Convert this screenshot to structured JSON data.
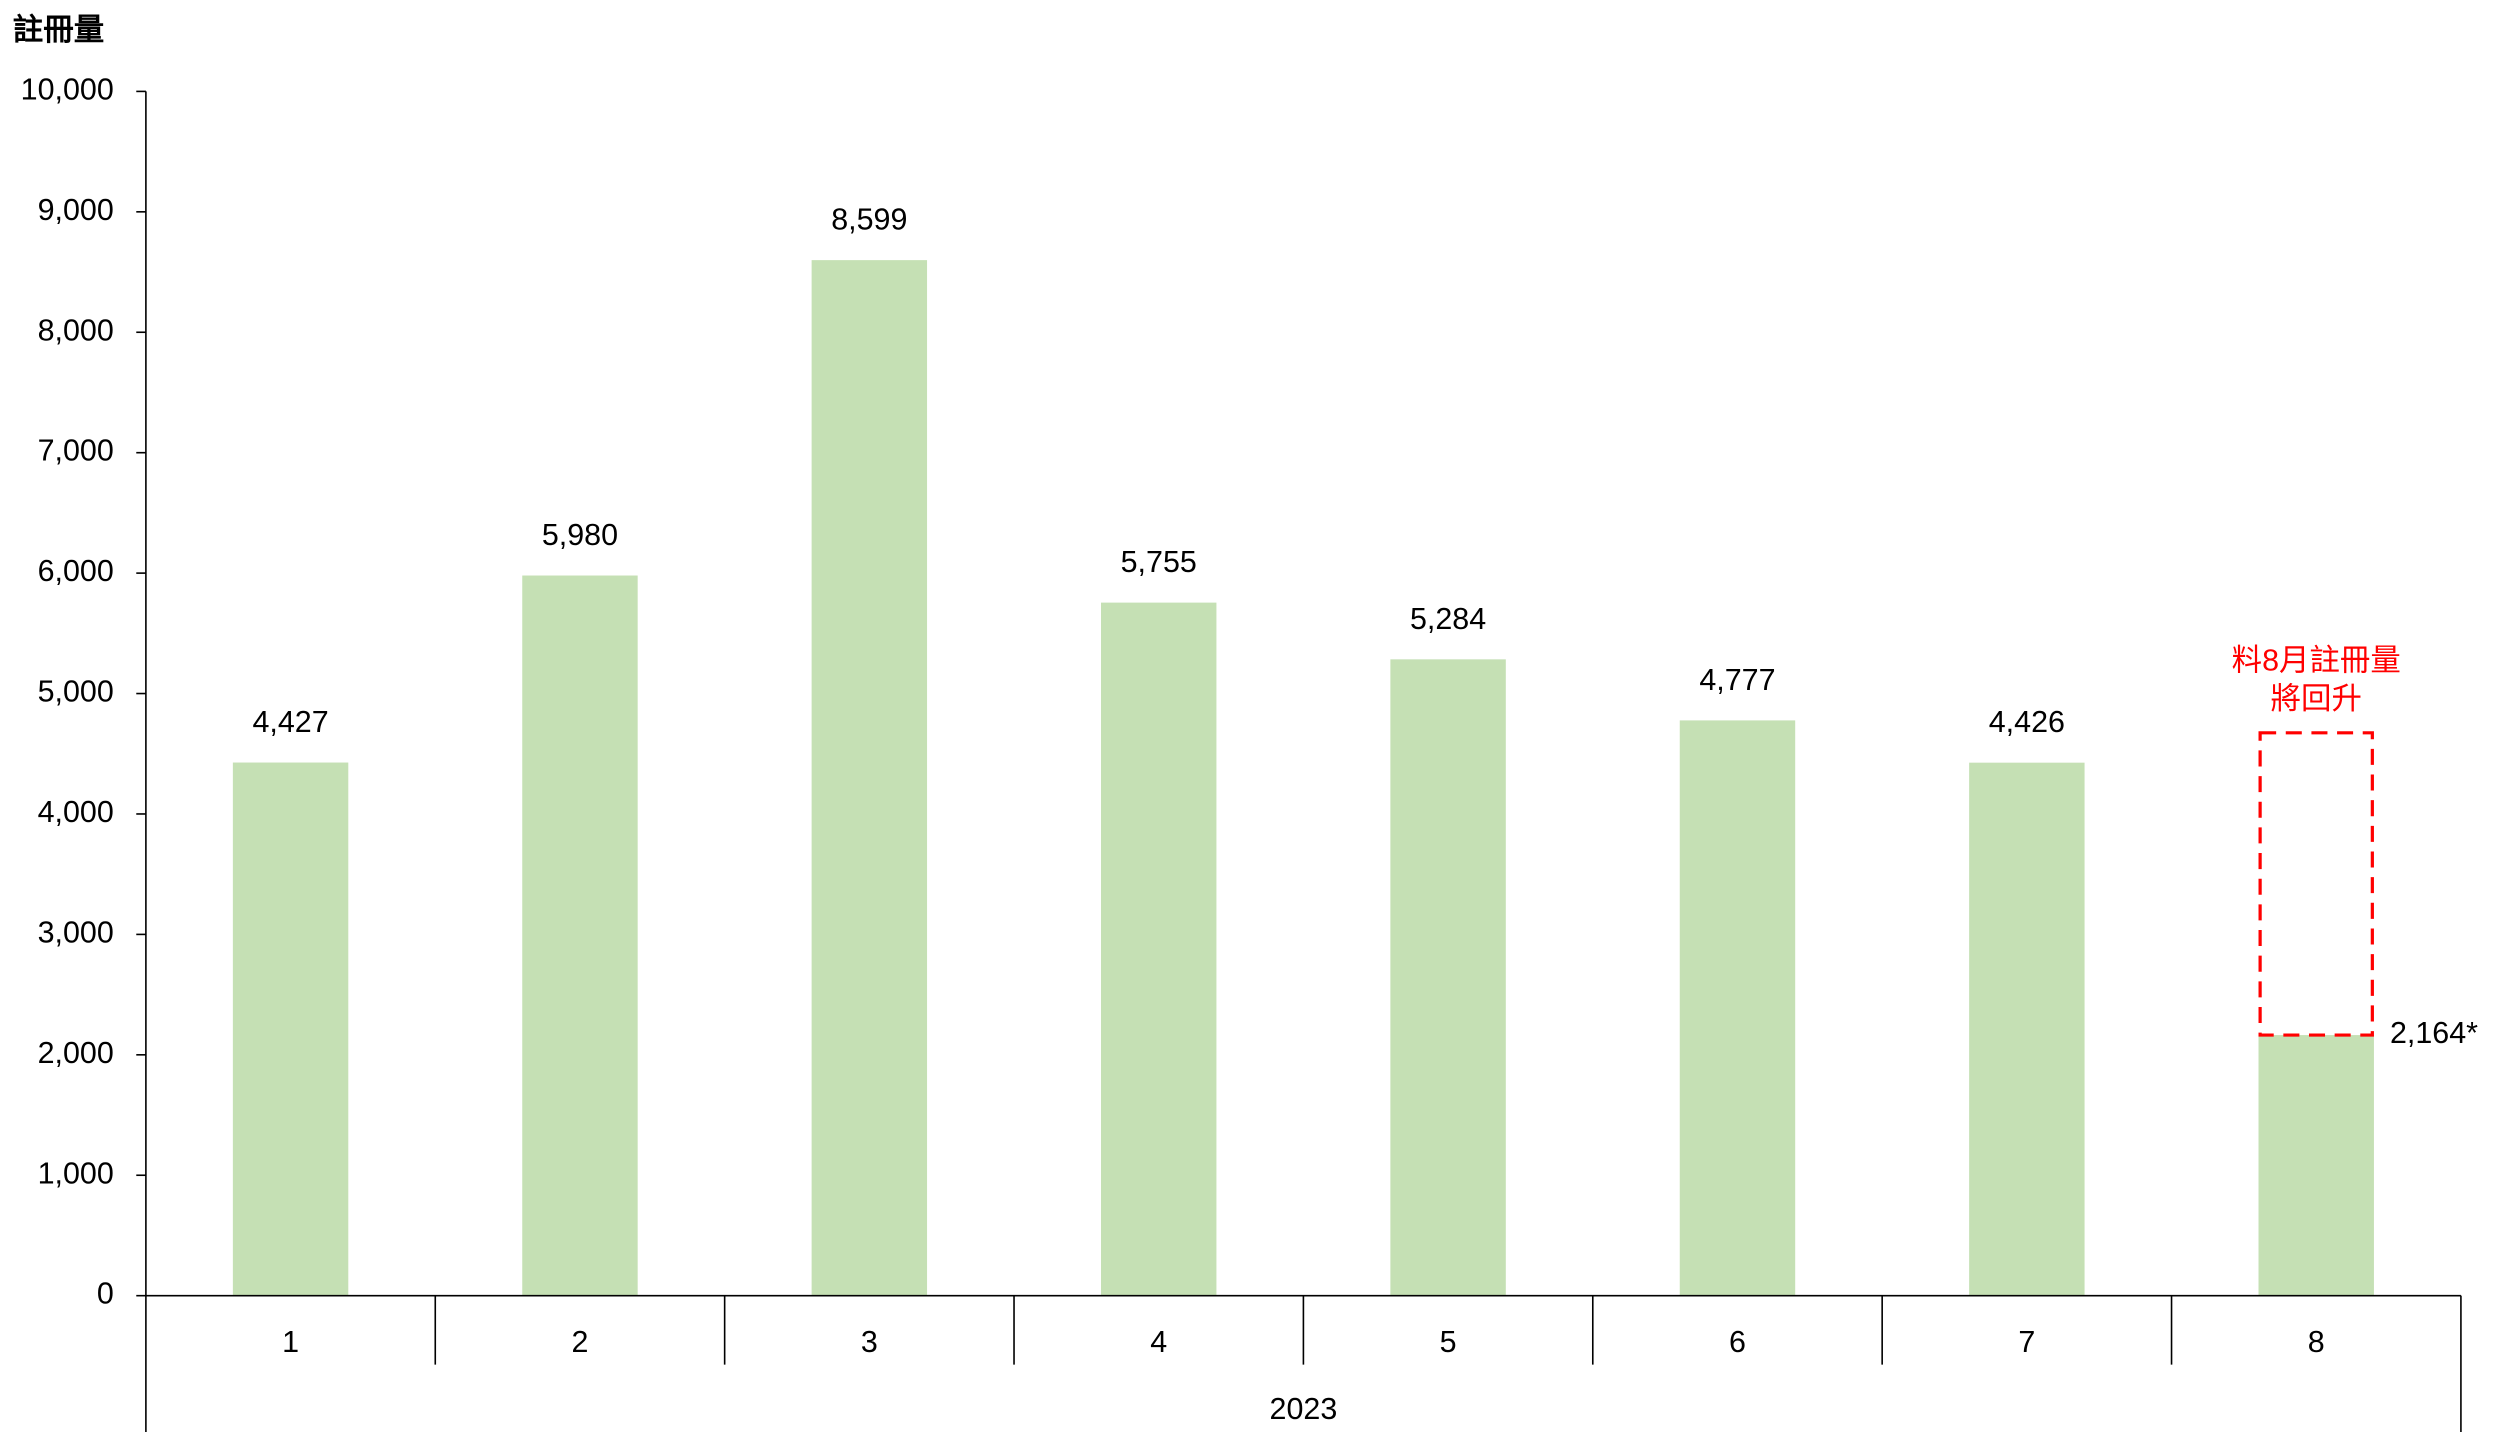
{
  "chart_data": {
    "type": "bar",
    "y_label": "註冊量",
    "categories": [
      "1",
      "2",
      "3",
      "4",
      "5",
      "6",
      "7",
      "8"
    ],
    "group_label": "2023",
    "values": [
      4427,
      5980,
      8599,
      5755,
      5284,
      4777,
      4426,
      2164
    ],
    "value_labels": [
      "4,427",
      "5,980",
      "8,599",
      "5,755",
      "5,284",
      "4,777",
      "4,426",
      "2,164*"
    ],
    "color": "#c5e0b4",
    "ylim": [
      0,
      10000
    ],
    "yticks": [
      0,
      {
        "value": 1000,
        "label": "1,000"
      },
      {
        "value": 2000,
        "label": "2,000"
      },
      {
        "value": 3000,
        "label": "3,000"
      },
      {
        "value": 4000,
        "label": "4,000"
      },
      {
        "value": 5000,
        "label": "5,000"
      },
      {
        "value": 6000,
        "label": "6,000"
      },
      {
        "value": 7000,
        "label": "7,000"
      },
      {
        "value": 8000,
        "label": "8,000"
      },
      {
        "value": 9000,
        "label": "9,000"
      },
      {
        "value": 10000,
        "label": "10,000"
      }
    ],
    "annotation": [
      "料8月註冊量",
      "將回升"
    ],
    "annotation_color": "#ff0000"
  }
}
